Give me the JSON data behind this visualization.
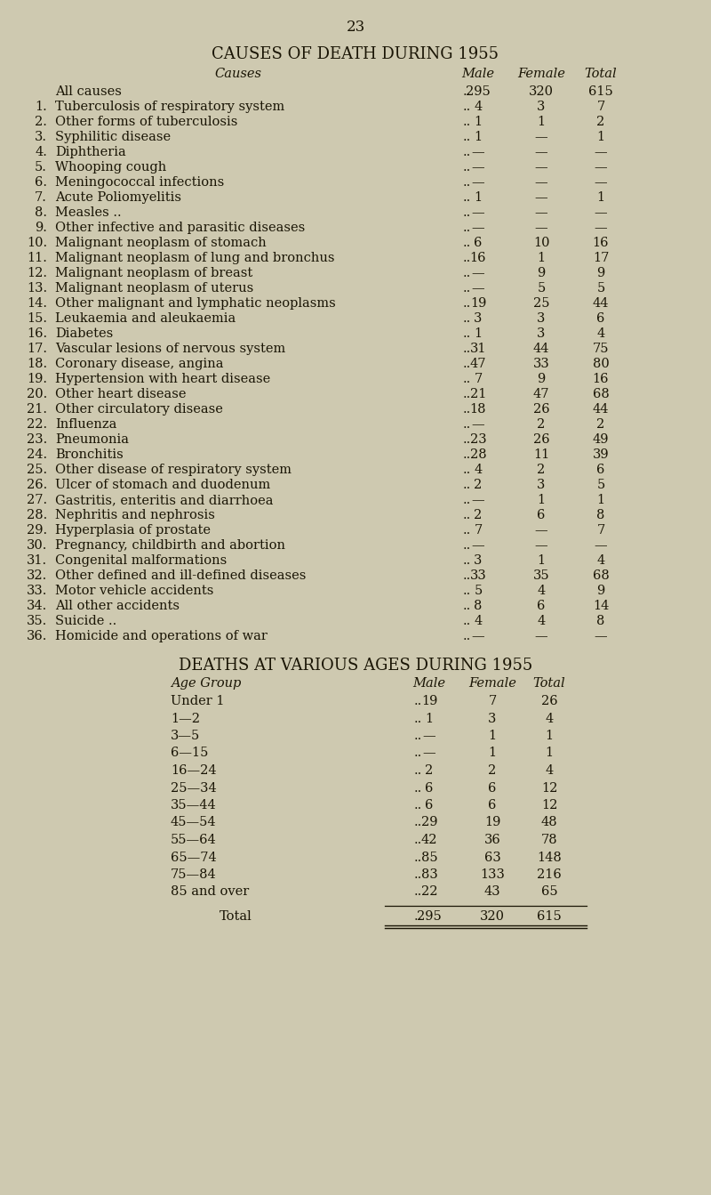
{
  "page_number": "23",
  "bg_color": "#cec9b0",
  "title1": "CAUSES OF DEATH DURING 1955",
  "causes_data": [
    {
      "num": "",
      "label": "All causes",
      "male": "295",
      "female": "320",
      "total": "615"
    },
    {
      "num": "1.",
      "label": "Tuberculosis of respiratory system",
      "male": "4",
      "female": "3",
      "total": "7"
    },
    {
      "num": "2.",
      "label": "Other forms of tuberculosis",
      "male": "1",
      "female": "1",
      "total": "2"
    },
    {
      "num": "3.",
      "label": "Syphilitic disease",
      "male": "1",
      "female": "—",
      "total": "1"
    },
    {
      "num": "4.",
      "label": "Diphtheria",
      "male": "—",
      "female": "—",
      "total": "—"
    },
    {
      "num": "5.",
      "label": "Whooping cough",
      "male": "—",
      "female": "—",
      "total": "—"
    },
    {
      "num": "6.",
      "label": "Meningococcal infections",
      "male": "—",
      "female": "—",
      "total": "—"
    },
    {
      "num": "7.",
      "label": "Acute Poliomyelitis",
      "male": "1",
      "female": "—",
      "total": "1"
    },
    {
      "num": "8.",
      "label": "Measles ..",
      "male": "—",
      "female": "—",
      "total": "—"
    },
    {
      "num": "9.",
      "label": "Other infective and parasitic diseases",
      "male": "—",
      "female": "—",
      "total": "—"
    },
    {
      "num": "10.",
      "label": "Malignant neoplasm of stomach",
      "male": "6",
      "female": "10",
      "total": "16"
    },
    {
      "num": "11.",
      "label": "Malignant neoplasm of lung and bronchus",
      "male": "16",
      "female": "1",
      "total": "17"
    },
    {
      "num": "12.",
      "label": "Malignant neoplasm of breast",
      "male": "—",
      "female": "9",
      "total": "9"
    },
    {
      "num": "13.",
      "label": "Malignant neoplasm of uterus",
      "male": "—",
      "female": "5",
      "total": "5"
    },
    {
      "num": "14.",
      "label": "Other malignant and lymphatic neoplasms",
      "male": "19",
      "female": "25",
      "total": "44"
    },
    {
      "num": "15.",
      "label": "Leukaemia and aleukaemia",
      "male": "3",
      "female": "3",
      "total": "6"
    },
    {
      "num": "16.",
      "label": "Diabetes",
      "male": "1",
      "female": "3",
      "total": "4"
    },
    {
      "num": "17.",
      "label": "Vascular lesions of nervous system",
      "male": "31",
      "female": "44",
      "total": "75"
    },
    {
      "num": "18.",
      "label": "Coronary disease, angina",
      "male": "47",
      "female": "33",
      "total": "80"
    },
    {
      "num": "19.",
      "label": "Hypertension with heart disease",
      "male": "7",
      "female": "9",
      "total": "16"
    },
    {
      "num": "20.",
      "label": "Other heart disease",
      "male": "21",
      "female": "47",
      "total": "68"
    },
    {
      "num": "21.",
      "label": "Other circulatory disease",
      "male": "18",
      "female": "26",
      "total": "44"
    },
    {
      "num": "22.",
      "label": "Influenza",
      "male": "—",
      "female": "2",
      "total": "2"
    },
    {
      "num": "23.",
      "label": "Pneumonia",
      "male": "23",
      "female": "26",
      "total": "49"
    },
    {
      "num": "24.",
      "label": "Bronchitis",
      "male": "28",
      "female": "11",
      "total": "39"
    },
    {
      "num": "25.",
      "label": "Other disease of respiratory system",
      "male": "4",
      "female": "2",
      "total": "6"
    },
    {
      "num": "26.",
      "label": "Ulcer of stomach and duodenum",
      "male": "2",
      "female": "3",
      "total": "5"
    },
    {
      "num": "27.",
      "label": "Gastritis, enteritis and diarrhoea",
      "male": "—",
      "female": "1",
      "total": "1"
    },
    {
      "num": "28.",
      "label": "Nephritis and nephrosis",
      "male": "2",
      "female": "6",
      "total": "8"
    },
    {
      "num": "29.",
      "label": "Hyperplasia of prostate",
      "male": "7",
      "female": "—",
      "total": "7"
    },
    {
      "num": "30.",
      "label": "Pregnancy, childbirth and abortion",
      "male": "—",
      "female": "—",
      "total": "—"
    },
    {
      "num": "31.",
      "label": "Congenital malformations",
      "male": "3",
      "female": "1",
      "total": "4"
    },
    {
      "num": "32.",
      "label": "Other defined and ill-defined diseases",
      "male": "33",
      "female": "35",
      "total": "68"
    },
    {
      "num": "33.",
      "label": "Motor vehicle accidents",
      "male": "5",
      "female": "4",
      "total": "9"
    },
    {
      "num": "34.",
      "label": "All other accidents",
      "male": "8",
      "female": "6",
      "total": "14"
    },
    {
      "num": "35.",
      "label": "Suicide ..",
      "male": "4",
      "female": "4",
      "total": "8"
    },
    {
      "num": "36.",
      "label": "Homicide and operations of war",
      "male": "—",
      "female": "—",
      "total": "—"
    }
  ],
  "title2": "DEATHS AT VARIOUS AGES DURING 1955",
  "age_data": [
    {
      "group": "Under 1",
      "male": "19",
      "female": "7",
      "total": "26"
    },
    {
      "group": "1—2",
      "male": "1",
      "female": "3",
      "total": "4"
    },
    {
      "group": "3—5",
      "male": "—",
      "female": "1",
      "total": "1"
    },
    {
      "group": "6—15",
      "male": "—",
      "female": "1",
      "total": "1"
    },
    {
      "group": "16—24",
      "male": "2",
      "female": "2",
      "total": "4"
    },
    {
      "group": "25—34",
      "male": "6",
      "female": "6",
      "total": "12"
    },
    {
      "group": "35—44",
      "male": "6",
      "female": "6",
      "total": "12"
    },
    {
      "group": "45—54",
      "male": "29",
      "female": "19",
      "total": "48"
    },
    {
      "group": "55—64",
      "male": "42",
      "female": "36",
      "total": "78"
    },
    {
      "group": "65—74",
      "male": "85",
      "female": "63",
      "total": "148"
    },
    {
      "group": "75—84",
      "male": "83",
      "female": "133",
      "total": "216"
    },
    {
      "group": "85 and over",
      "male": "22",
      "female": "43",
      "total": "65"
    }
  ],
  "total_row": {
    "label": "Total",
    "male": "295",
    "female": "320",
    "total": "615"
  },
  "text_color": "#1a1505",
  "fs_title": 13,
  "fs_body": 10.5,
  "fs_pagenum": 12
}
